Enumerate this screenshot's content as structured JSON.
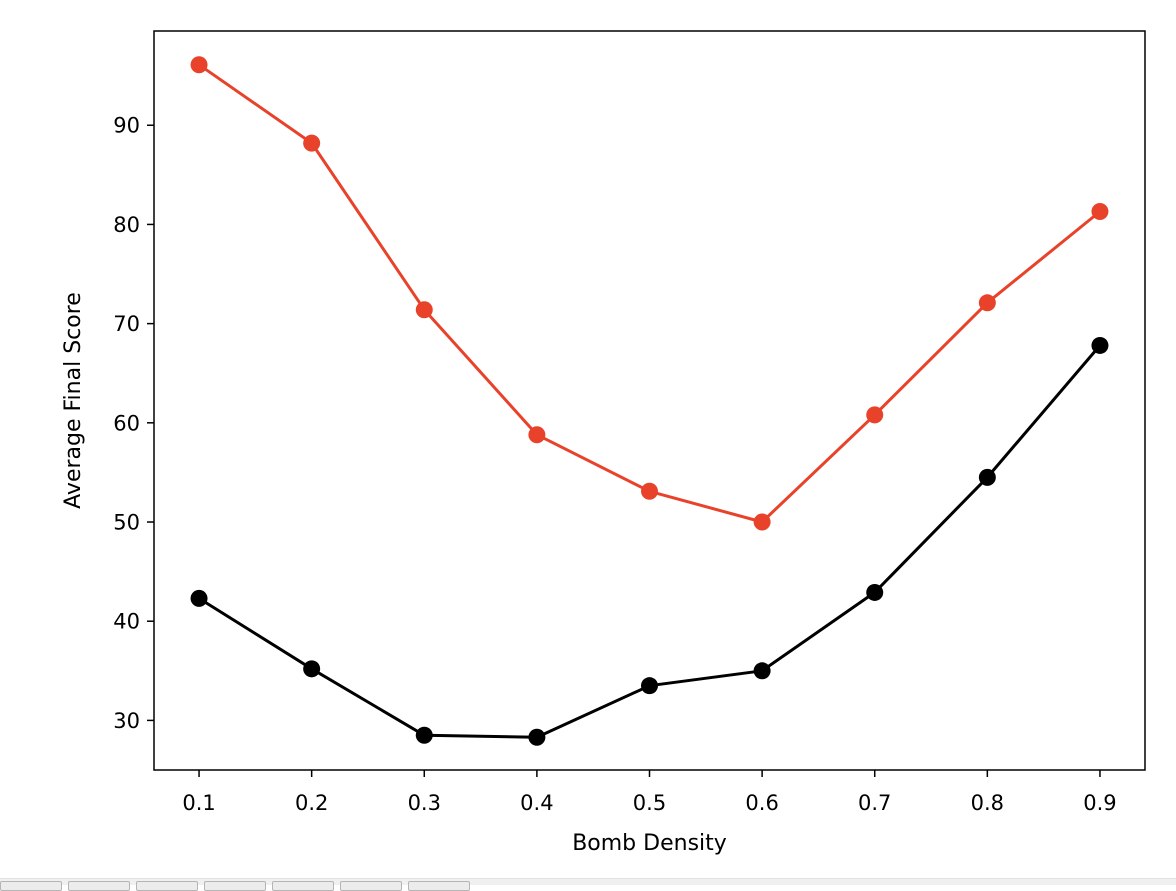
{
  "chart_data": {
    "type": "line",
    "title": "",
    "xlabel": "Bomb Density",
    "ylabel": "Average Final Score",
    "x": [
      0.1,
      0.2,
      0.3,
      0.4,
      0.5,
      0.6,
      0.7,
      0.8,
      0.9
    ],
    "x_tick_labels": [
      "0.1",
      "0.2",
      "0.3",
      "0.4",
      "0.5",
      "0.6",
      "0.7",
      "0.8",
      "0.9"
    ],
    "xlim": [
      0.06,
      0.94
    ],
    "y_ticks": [
      30,
      40,
      50,
      60,
      70,
      80,
      90
    ],
    "y_tick_labels": [
      "30",
      "40",
      "50",
      "60",
      "70",
      "80",
      "90"
    ],
    "ylim": [
      25,
      99.5
    ],
    "grid": false,
    "legend": "none",
    "series": [
      {
        "color": "#e8432a",
        "marker": "circle",
        "values": [
          96.1,
          88.2,
          71.4,
          58.8,
          53.1,
          50.0,
          60.8,
          72.1,
          81.3
        ]
      },
      {
        "color": "#000000",
        "marker": "circle",
        "values": [
          42.3,
          35.2,
          28.5,
          28.3,
          33.5,
          35.0,
          42.9,
          54.5,
          67.8
        ]
      }
    ]
  }
}
